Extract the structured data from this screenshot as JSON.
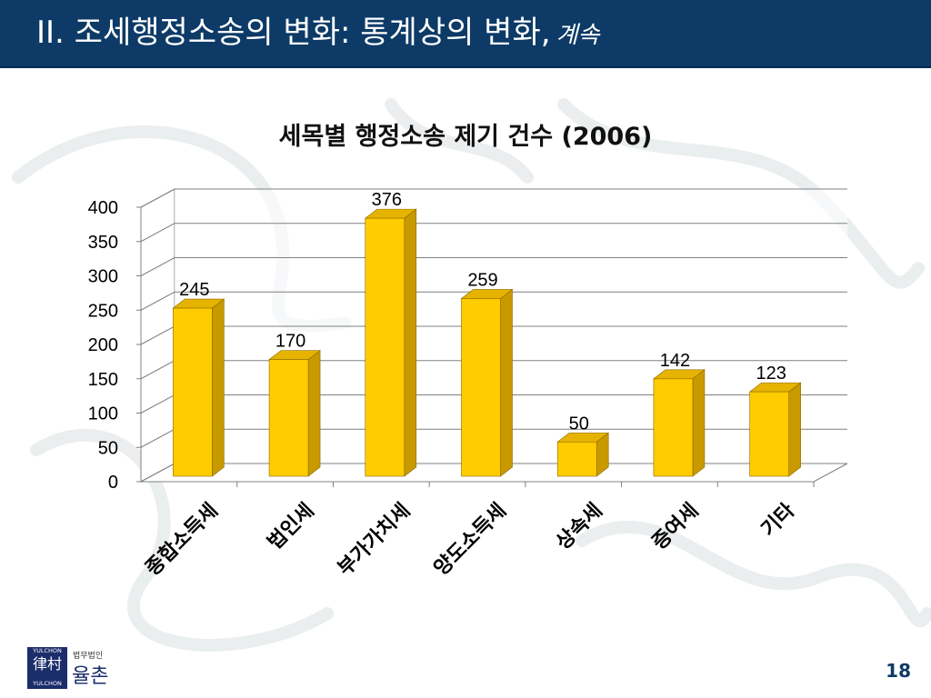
{
  "header": {
    "title": "II. 조세행정소송의 변화: 통계상의 변화,",
    "title_suffix": "계속"
  },
  "chart_data": {
    "type": "bar",
    "title": "세목별 행정소송 제기 건수 (2006)",
    "categories": [
      "종합소득세",
      "법인세",
      "부가가치세",
      "양도소득세",
      "상속세",
      "증여세",
      "기타"
    ],
    "values": [
      245,
      170,
      376,
      259,
      50,
      142,
      123
    ],
    "ylim": [
      0,
      400
    ],
    "yticks": [
      0,
      50,
      100,
      150,
      200,
      250,
      300,
      350,
      400
    ],
    "grid": true,
    "legend": "none",
    "bar_color": "#ffcc00",
    "bar_side_color": "#c89a00",
    "bar_top_color": "#e6b400"
  },
  "logo": {
    "small_text": "법무법인",
    "big_text": "율촌",
    "en_top": "YULCHON",
    "en_bottom": "YULCHON",
    "glyph": "律村"
  },
  "page": {
    "number": "18"
  }
}
